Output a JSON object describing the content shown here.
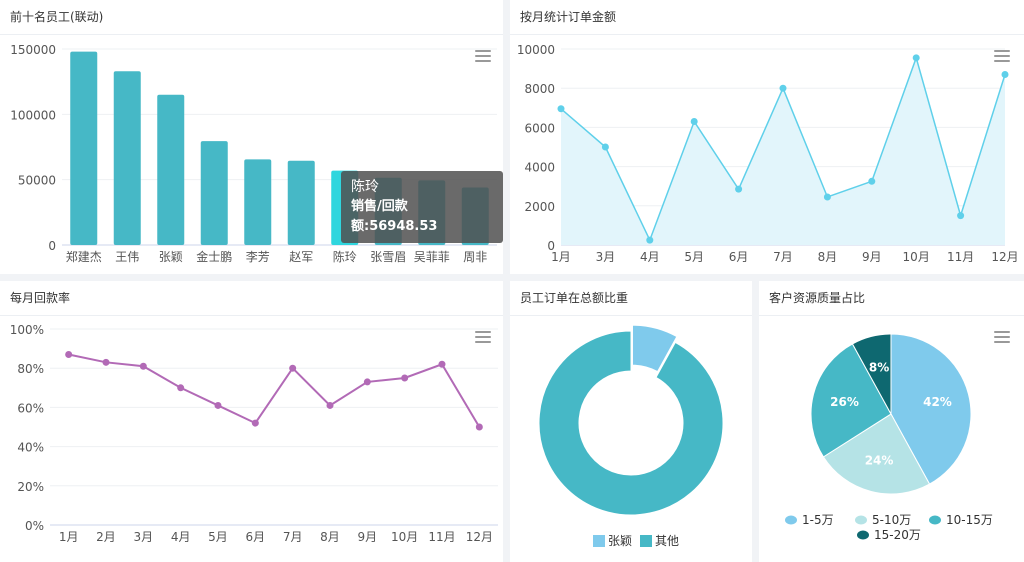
{
  "chart_data": [
    {
      "id": "top10",
      "type": "bar",
      "title": "前十名员工(联动)",
      "categories": [
        "郑建杰",
        "王伟",
        "张颖",
        "金士鹏",
        "李芳",
        "赵军",
        "陈玲",
        "张雪眉",
        "吴菲菲",
        "周非"
      ],
      "values": [
        148000,
        133000,
        115000,
        79500,
        65500,
        64500,
        56948.53,
        51500,
        49500,
        44000
      ],
      "yticks": [
        "0",
        "50000",
        "100000",
        "150000"
      ],
      "ylim": [
        0,
        150000
      ],
      "color": "#46b8c6",
      "highlight_color": "#2fd6de",
      "highlight_index": 6,
      "tooltip": {
        "name": "陈玲",
        "text": "销售/回款额:56948.53"
      }
    },
    {
      "id": "monthly_orders",
      "type": "area",
      "title": "按月统计订单金额",
      "categories": [
        "1月",
        "3月",
        "4月",
        "5月",
        "6月",
        "7月",
        "8月",
        "9月",
        "10月",
        "11月",
        "12月"
      ],
      "values": [
        6950,
        5000,
        250,
        6300,
        2850,
        8000,
        2450,
        3250,
        9550,
        1500,
        8700
      ],
      "yticks": [
        "0",
        "2000",
        "4000",
        "6000",
        "8000",
        "10000"
      ],
      "ylim": [
        0,
        10000
      ],
      "color": "#5fd0ea"
    },
    {
      "id": "payback_rate",
      "type": "line",
      "title": "每月回款率",
      "categories": [
        "1月",
        "2月",
        "3月",
        "4月",
        "5月",
        "6月",
        "7月",
        "8月",
        "9月",
        "10月",
        "11月",
        "12月"
      ],
      "values": [
        87,
        83,
        81,
        70,
        61,
        52,
        80,
        61,
        73,
        75,
        82,
        50
      ],
      "yticks": [
        "0%",
        "20%",
        "40%",
        "60%",
        "80%",
        "100%"
      ],
      "ylim": [
        0,
        100
      ],
      "color": "#b26ab6"
    },
    {
      "id": "employee_share",
      "type": "pie",
      "title": "员工订单在总额比重",
      "labels": [
        "张颖",
        "其他"
      ],
      "values": [
        8,
        92
      ],
      "colors": [
        "#7fcaec",
        "#46b8c6"
      ]
    },
    {
      "id": "customer_quality",
      "type": "pie",
      "title": "客户资源质量占比",
      "labels": [
        "1-5万",
        "5-10万",
        "10-15万",
        "15-20万"
      ],
      "values": [
        42,
        24,
        26,
        8
      ],
      "percent_labels": [
        "42%",
        "24%",
        "26%",
        "8%"
      ],
      "colors": [
        "#7fcaec",
        "#b5e3e6",
        "#46b8c6",
        "#0e6870"
      ]
    }
  ]
}
